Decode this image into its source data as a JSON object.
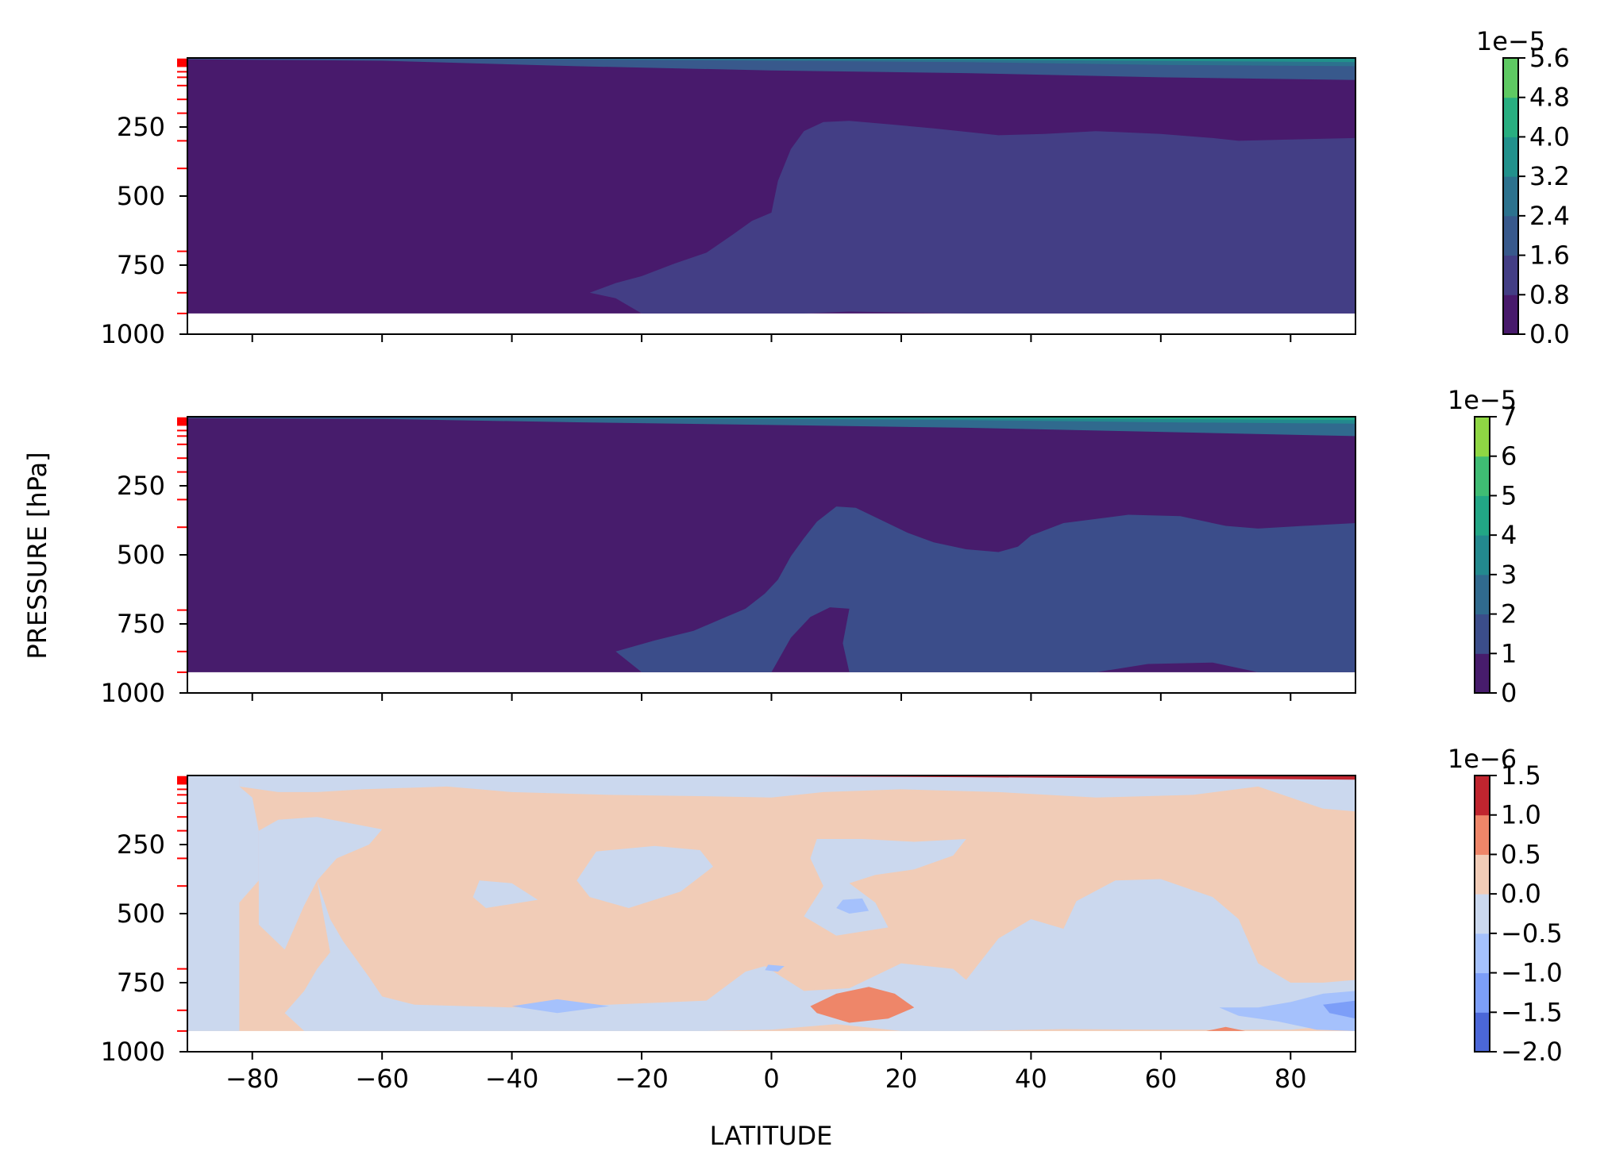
{
  "figure": {
    "ylabel": "PRESSURE [hPa]",
    "xlabel": "LATITUDE"
  },
  "chart_data": [
    {
      "type": "contour",
      "panel": "top",
      "xlim": [
        -90,
        90
      ],
      "ylim": [
        1000,
        0
      ],
      "ytick_labels": [
        "250",
        "500",
        "750",
        "1000"
      ],
      "ytick_values": [
        250,
        500,
        750,
        1000
      ],
      "x_tick_values": [
        -80,
        -60,
        -40,
        -20,
        0,
        20,
        40,
        60,
        80
      ],
      "x_tick_labels_shown": false,
      "data_bottom_pressure": 925,
      "level_markers_hPa": [
        5,
        10,
        15,
        20,
        25,
        30,
        50,
        70,
        100,
        150,
        200,
        300,
        400,
        700,
        850,
        925
      ],
      "level_marker_color": "#ff0000",
      "colorbar": {
        "levels": [
          0.0,
          0.8,
          1.6,
          2.4,
          3.2,
          4.0,
          4.8,
          5.6
        ],
        "tick_labels": [
          "0.0",
          "0.8",
          "1.6",
          "2.4",
          "3.2",
          "4.0",
          "4.8",
          "5.6"
        ],
        "offset_text": "1e−5",
        "colors": [
          "#481a6c",
          "#433e85",
          "#38598c",
          "#2c728e",
          "#21918c",
          "#28ae80",
          "#5ec962",
          "#addc30"
        ]
      },
      "regions": [
        {
          "level": 0,
          "description": "background 0.0-0.8"
        },
        {
          "level": 1,
          "polyline_lat_p": [
            [
              -28,
              850
            ],
            [
              -20,
              770
            ],
            [
              -15,
              700
            ],
            [
              -6,
              590
            ],
            [
              -3,
              540
            ],
            [
              0,
              500
            ],
            [
              1,
              420
            ],
            [
              3,
              300
            ],
            [
              5,
              250
            ],
            [
              10,
              230
            ],
            [
              18,
              250
            ],
            [
              25,
              290
            ],
            [
              35,
              300
            ],
            [
              50,
              275
            ],
            [
              65,
              290
            ],
            [
              75,
              310
            ],
            [
              90,
              300
            ]
          ]
        },
        {
          "level": 2,
          "top_band_pressure": [
            0,
            50
          ]
        },
        {
          "level": 3,
          "top_band_pressure": [
            0,
            15
          ]
        }
      ]
    },
    {
      "type": "contour",
      "panel": "middle",
      "xlim": [
        -90,
        90
      ],
      "ylim": [
        1000,
        0
      ],
      "ytick_labels": [
        "250",
        "500",
        "750",
        "1000"
      ],
      "ytick_values": [
        250,
        500,
        750,
        1000
      ],
      "x_tick_values": [
        -80,
        -60,
        -40,
        -20,
        0,
        20,
        40,
        60,
        80
      ],
      "x_tick_labels_shown": false,
      "data_bottom_pressure": 925,
      "level_markers_hPa": [
        5,
        10,
        15,
        20,
        25,
        30,
        50,
        70,
        100,
        150,
        200,
        300,
        400,
        700,
        850,
        925
      ],
      "level_marker_color": "#ff0000",
      "colorbar": {
        "levels": [
          0,
          1,
          2,
          3,
          4,
          5,
          6,
          7
        ],
        "tick_labels": [
          "0",
          "1",
          "2",
          "3",
          "4",
          "5",
          "6",
          "7"
        ],
        "offset_text": "1e−5",
        "colors": [
          "#471c6c",
          "#3b4d8a",
          "#306a8e",
          "#23898e",
          "#22a785",
          "#3fbc73",
          "#8fd744",
          "#fde725"
        ]
      },
      "regions": [
        {
          "level": 0,
          "description": "background 0-1"
        },
        {
          "level": 1,
          "polyline_lat_p": [
            [
              -24,
              850
            ],
            [
              -12,
              740
            ],
            [
              -5,
              660
            ],
            [
              0,
              600
            ],
            [
              3,
              520
            ],
            [
              5,
              390
            ],
            [
              8,
              300
            ],
            [
              10,
              270
            ],
            [
              15,
              320
            ],
            [
              20,
              420
            ],
            [
              30,
              490
            ],
            [
              35,
              470
            ],
            [
              40,
              380
            ],
            [
              50,
              330
            ],
            [
              60,
              340
            ],
            [
              70,
              400
            ],
            [
              80,
              390
            ],
            [
              90,
              390
            ]
          ]
        },
        {
          "level": 2,
          "top_band_pressure": [
            0,
            60
          ]
        }
      ]
    },
    {
      "type": "contour",
      "panel": "bottom",
      "xlim": [
        -90,
        90
      ],
      "ylim": [
        1000,
        0
      ],
      "ytick_labels": [
        "250",
        "500",
        "750",
        "1000"
      ],
      "ytick_values": [
        250,
        500,
        750,
        1000
      ],
      "xtick_labels": [
        "−80",
        "−60",
        "−40",
        "−20",
        "0",
        "20",
        "40",
        "60",
        "80"
      ],
      "x_tick_values": [
        -80,
        -60,
        -40,
        -20,
        0,
        20,
        40,
        60,
        80
      ],
      "data_bottom_pressure": 925,
      "level_markers_hPa": [
        5,
        10,
        15,
        20,
        25,
        30,
        50,
        70,
        100,
        150,
        200,
        300,
        400,
        700,
        850,
        925
      ],
      "level_marker_color": "#ff0000",
      "colorbar": {
        "levels": [
          -2.0,
          -1.5,
          -1.0,
          -0.5,
          0.0,
          0.5,
          1.0,
          1.5
        ],
        "tick_labels": [
          "−2.0",
          "−1.5",
          "−1.0",
          "−0.5",
          "0.0",
          "0.5",
          "1.0",
          "1.5"
        ],
        "offset_text": "1e−6",
        "colors": [
          "#4b67d8",
          "#7c9ef8",
          "#a5c1fc",
          "#cbd8ee",
          "#f1ccb7",
          "#ee8669",
          "#c0252f"
        ]
      },
      "regions": [
        {
          "level": "0.0 to 0.5",
          "description": "background positive"
        },
        {
          "level": "-0.5 to 0.0",
          "description": "negative regions: western boundary, lower levels band, tropics column, high latitude north"
        },
        {
          "level": "0.5 to 1.0",
          "description": "positive maximum near 15N, 850-900 hPa"
        },
        {
          "level": "-1.5 to -1.0",
          "description": "minimum near 88N, 850 hPa"
        }
      ]
    }
  ]
}
